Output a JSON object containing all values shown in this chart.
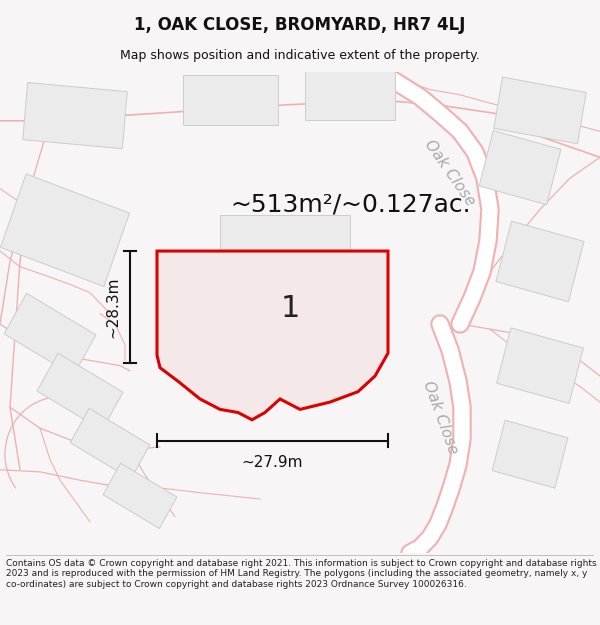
{
  "title": "1, OAK CLOSE, BROMYARD, HR7 4LJ",
  "subtitle": "Map shows position and indicative extent of the property.",
  "area_text": "~513m²/~0.127ac.",
  "label_1": "1",
  "dim_width": "~27.9m",
  "dim_height": "~28.3m",
  "road_label_1": "Oak Close",
  "road_label_2": "Oak Close",
  "footer": "Contains OS data © Crown copyright and database right 2021. This information is subject to Crown copyright and database rights 2023 and is reproduced with the permission of HM Land Registry. The polygons (including the associated geometry, namely x, y co-ordinates) are subject to Crown copyright and database rights 2023 Ordnance Survey 100026316.",
  "bg_color": "#f7f5f5",
  "map_bg": "#ffffff",
  "plot_fill": "#f5e8e8",
  "plot_edge": "#dd0000",
  "road_line_color": "#f0b0b0",
  "boundary_color": "#e8a0a0",
  "building_fill": "#ebebeb",
  "building_edge": "#cccccc",
  "dim_line_color": "#111111",
  "text_color": "#111111",
  "road_text_color": "#aaaaaa",
  "footer_color": "#222222",
  "title_fontsize": 12,
  "subtitle_fontsize": 9,
  "area_fontsize": 18,
  "dim_fontsize": 11,
  "label_fontsize": 22,
  "road_label_fontsize": 11
}
